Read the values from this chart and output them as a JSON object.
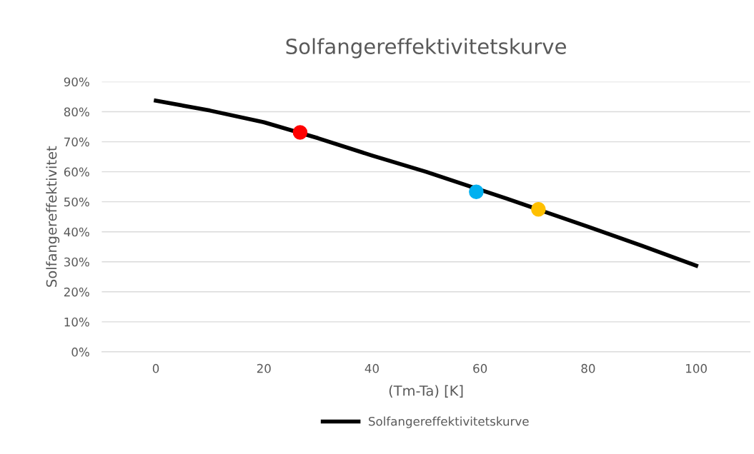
{
  "chart_data": {
    "type": "line",
    "title": "Solfangereffektivitetskurve",
    "xlabel": "(Tm-Ta) [K]",
    "ylabel": "Solfangereffektivitet",
    "series": [
      {
        "name": "Solfangereffektivitetskurve",
        "color": "#000000",
        "marker": "none",
        "x": [
          0,
          10,
          20,
          30,
          40,
          50,
          65,
          80,
          90,
          100
        ],
        "values": [
          83.7,
          80.4,
          76.5,
          71.2,
          65.4,
          60,
          51,
          41.7,
          35.3,
          28.7
        ]
      },
      {
        "type": "scatter",
        "marker": "circle",
        "color": "#ff0000",
        "x": [
          26.7
        ],
        "values": [
          73.1
        ]
      },
      {
        "type": "scatter",
        "marker": "circle",
        "color": "#00b0f0",
        "x": [
          59.3
        ],
        "values": [
          53.3
        ]
      },
      {
        "type": "scatter",
        "marker": "circle",
        "color": "#ffc000",
        "x": [
          70.8
        ],
        "values": [
          47.5
        ]
      }
    ],
    "xlim": [
      -10,
      110
    ],
    "xticks": [
      0,
      20,
      40,
      60,
      80,
      100
    ],
    "ylim": [
      0,
      90
    ],
    "yticks": [
      {
        "value": 0,
        "label": "0%"
      },
      {
        "value": 10,
        "label": "10%"
      },
      {
        "value": 20,
        "label": "20%"
      },
      {
        "value": 30,
        "label": "30%"
      },
      {
        "value": 40,
        "label": "40%"
      },
      {
        "value": 50,
        "label": "50%"
      },
      {
        "value": 60,
        "label": "60%"
      },
      {
        "value": 70,
        "label": "70%"
      },
      {
        "value": 80,
        "label": "80%"
      },
      {
        "value": 90,
        "label": "90%"
      }
    ],
    "grid": "y",
    "legend": "bottom",
    "line_style": "solid"
  }
}
